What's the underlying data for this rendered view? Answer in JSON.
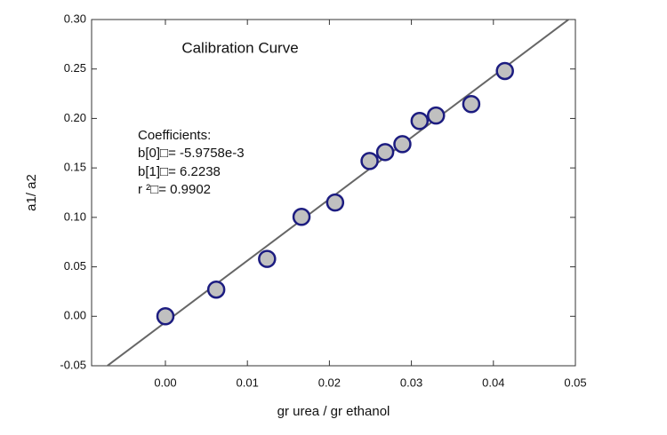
{
  "chart_data": {
    "type": "scatter",
    "title": "Calibration Curve",
    "annotation": [
      "Coefficients:",
      "b[0]□= -5.9758e-3",
      "b[1]□= 6.2238",
      "r ²□= 0.9902"
    ],
    "x_label": "gr urea / gr ethanol",
    "y_label": "a1/ a2",
    "series": [
      {
        "color": "#c0c0c0",
        "edgecolor": "#1c1c80",
        "x": [
          0,
          0.0062,
          0.0124,
          0.0166,
          0.0207,
          0.0249,
          0.0268,
          0.0289,
          0.031,
          0.033,
          0.0373,
          0.0414
        ],
        "values": [
          0,
          0.027,
          0.058,
          0.1005,
          0.115,
          0.157,
          0.166,
          0.174,
          0.1975,
          0.203,
          0.2145,
          0.248
        ]
      }
    ],
    "fit": {
      "intercept": -0.0059758,
      "slope": 6.2238,
      "color": "#666666"
    },
    "xlim": [
      -0.009,
      0.05
    ],
    "ylim": [
      -0.05,
      0.3
    ],
    "xticks": [
      {
        "value": 0,
        "label": "0.00"
      },
      0.01,
      0.02,
      0.03,
      0.04,
      0.05
    ],
    "yticks": [
      -0.05,
      {
        "value": 0,
        "label": "0.00"
      },
      0.05,
      {
        "value": 0.1,
        "label": "0.10"
      },
      0.15,
      {
        "value": 0.2,
        "label": "0.20"
      },
      0.25,
      {
        "value": 0.3,
        "label": "0.30"
      }
    ]
  }
}
